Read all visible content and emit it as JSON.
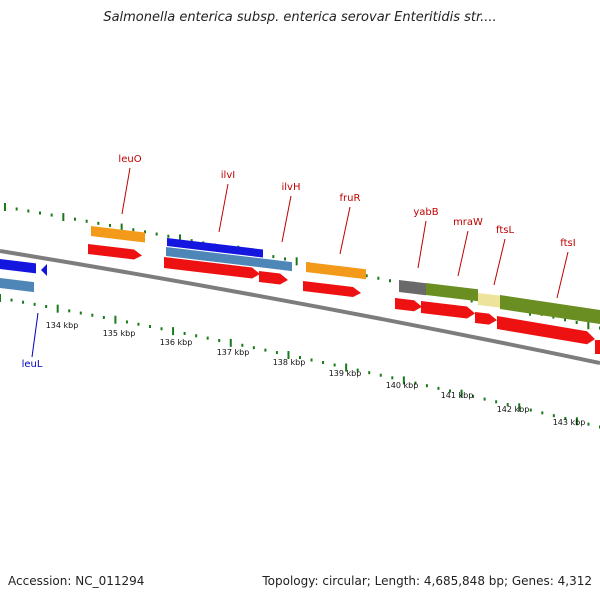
{
  "header": {
    "title": "Salmonella enterica subsp. enterica serovar Enteritidis str...."
  },
  "footer": {
    "accession": "Accession: NC_011294",
    "summary": "Topology: circular; Length: 4,685,848 bp; Genes: 4,312"
  },
  "map": {
    "track_color": "#808080",
    "tick_color": "#1a7a1a",
    "scale_labels": [
      {
        "name": "134 kbp"
      },
      {
        "name": "135 kbp"
      },
      {
        "name": "136 kbp"
      },
      {
        "name": "137 kbp"
      },
      {
        "name": "138 kbp"
      },
      {
        "name": "139 kbp"
      },
      {
        "name": "140 kbp"
      },
      {
        "name": "141 kbp"
      },
      {
        "name": "142 kbp"
      },
      {
        "name": "143 kbp"
      }
    ],
    "gene_labels": [
      {
        "name": "leuO",
        "color": "#c00000"
      },
      {
        "name": "ilvI",
        "color": "#c00000"
      },
      {
        "name": "ilvH",
        "color": "#c00000"
      },
      {
        "name": "fruR",
        "color": "#c00000"
      },
      {
        "name": "yabB",
        "color": "#c00000"
      },
      {
        "name": "mraW",
        "color": "#c00000"
      },
      {
        "name": "ftsL",
        "color": "#c00000"
      },
      {
        "name": "ftsI",
        "color": "#c00000"
      },
      {
        "name": "leuL",
        "color": "#0000c0"
      }
    ],
    "feature_colors": {
      "cds": "#ee1111",
      "gene_orange": "#f39a1a",
      "gene_blue": "#1515e0",
      "gene_steel": "#4f86b8",
      "gene_gray": "#6a6a6a",
      "gene_olive": "#6b8e23",
      "gene_pale": "#eee39a"
    }
  }
}
